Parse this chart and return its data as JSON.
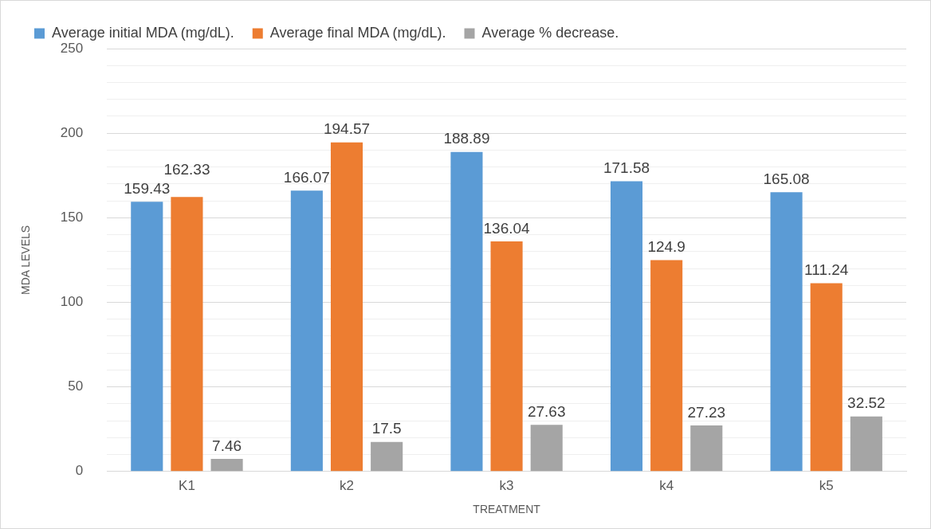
{
  "chart_data": {
    "type": "bar",
    "xlabel": "TREATMENT",
    "ylabel": "MDA LEVELS",
    "categories": [
      "K1",
      "k2",
      "k3",
      "k4",
      "k5"
    ],
    "series": [
      {
        "name": "Average initial MDA (mg/dL).",
        "color": "#5b9bd5",
        "values": [
          159.43,
          166.07,
          188.89,
          171.58,
          165.08
        ]
      },
      {
        "name": "Average final MDA (mg/dL).",
        "color": "#ed7d31",
        "values": [
          162.33,
          194.57,
          136.04,
          124.9,
          111.24
        ]
      },
      {
        "name": "Average % decrease.",
        "color": "#a5a5a5",
        "values": [
          7.46,
          17.5,
          27.63,
          27.23,
          32.52
        ]
      }
    ],
    "ylim": [
      0,
      250
    ],
    "yticks": [
      0,
      {
        "value": 10,
        "label": null
      },
      {
        "value": 20,
        "label": null
      },
      {
        "value": 30,
        "label": null
      },
      {
        "value": 40,
        "label": null
      },
      50,
      {
        "value": 60,
        "label": null
      },
      {
        "value": 70,
        "label": null
      },
      {
        "value": 80,
        "label": null
      },
      {
        "value": 90,
        "label": null
      },
      100,
      {
        "value": 110,
        "label": null
      },
      {
        "value": 120,
        "label": null
      },
      {
        "value": 130,
        "label": null
      },
      {
        "value": 140,
        "label": null
      },
      150,
      {
        "value": 160,
        "label": null
      },
      {
        "value": 170,
        "label": null
      },
      {
        "value": 180,
        "label": null
      },
      {
        "value": 190,
        "label": null
      },
      200,
      {
        "value": 210,
        "label": null
      },
      {
        "value": 220,
        "label": null
      },
      {
        "value": 230,
        "label": null
      },
      {
        "value": 240,
        "label": null
      },
      250
    ],
    "grid": "y",
    "legend": "top",
    "data_labels": true
  }
}
